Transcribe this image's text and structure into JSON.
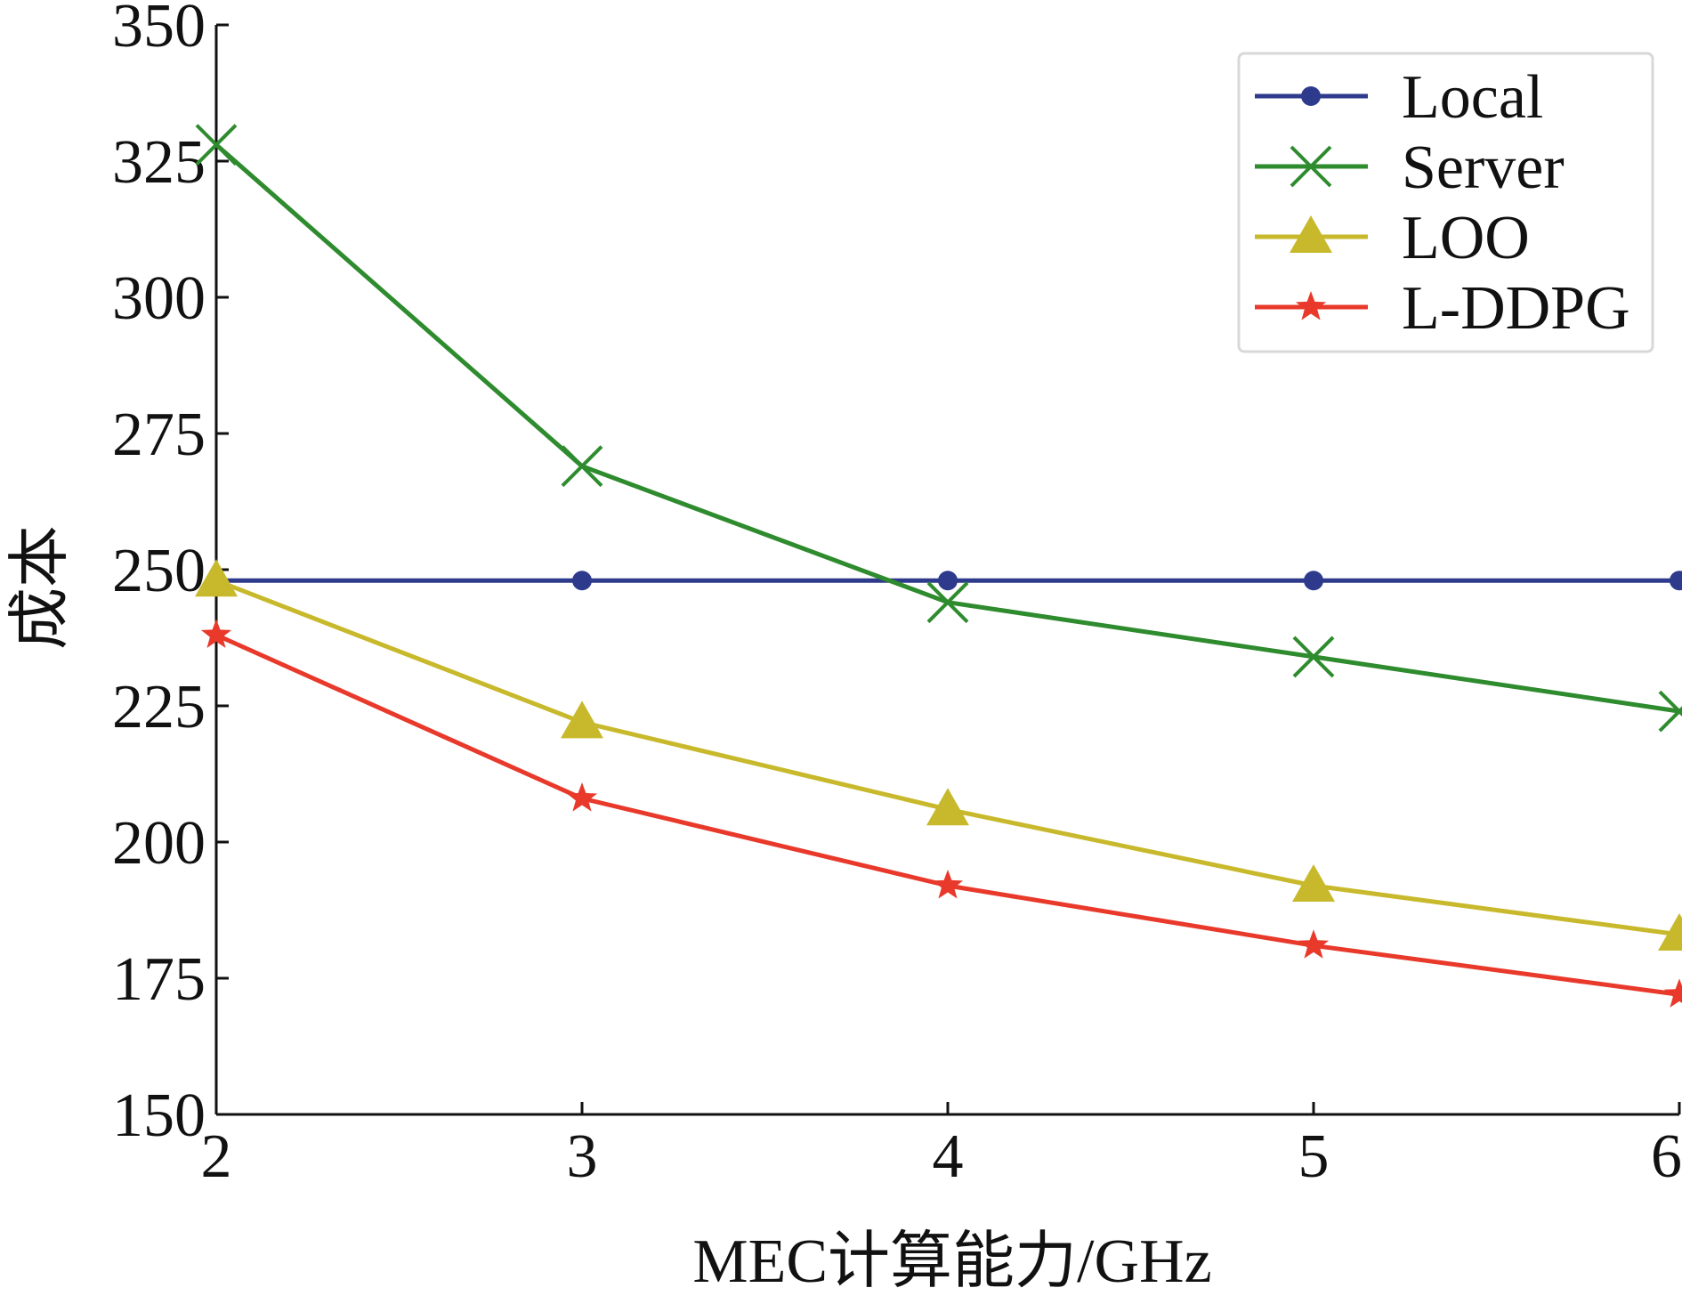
{
  "chart_data": {
    "type": "line",
    "title": "",
    "xlabel": "MEC计算能力/GHz",
    "ylabel": "成本",
    "x": [
      2,
      3,
      4,
      5,
      6
    ],
    "xlim": [
      2,
      6
    ],
    "ylim": [
      150,
      350
    ],
    "xticks": [
      "2",
      "3",
      "4",
      "5",
      "6"
    ],
    "yticks": [
      "150",
      "175",
      "200",
      "225",
      "250",
      "275",
      "300",
      "325",
      "350"
    ],
    "grid": false,
    "legend_position": "top-right",
    "series": [
      {
        "name": "Local",
        "color": "#2e3a8c",
        "marker": "circle",
        "values": [
          248,
          248,
          248,
          248,
          248
        ]
      },
      {
        "name": "Server",
        "color": "#2e8b2e",
        "marker": "x",
        "values": [
          328,
          269,
          244,
          234,
          224
        ]
      },
      {
        "name": "LOO",
        "color": "#c8b92c",
        "marker": "triangle",
        "values": [
          248,
          222,
          206,
          192,
          183
        ]
      },
      {
        "name": "L-DDPG",
        "color": "#e8392b",
        "marker": "star",
        "values": [
          238,
          208,
          192,
          181,
          172
        ]
      }
    ]
  }
}
